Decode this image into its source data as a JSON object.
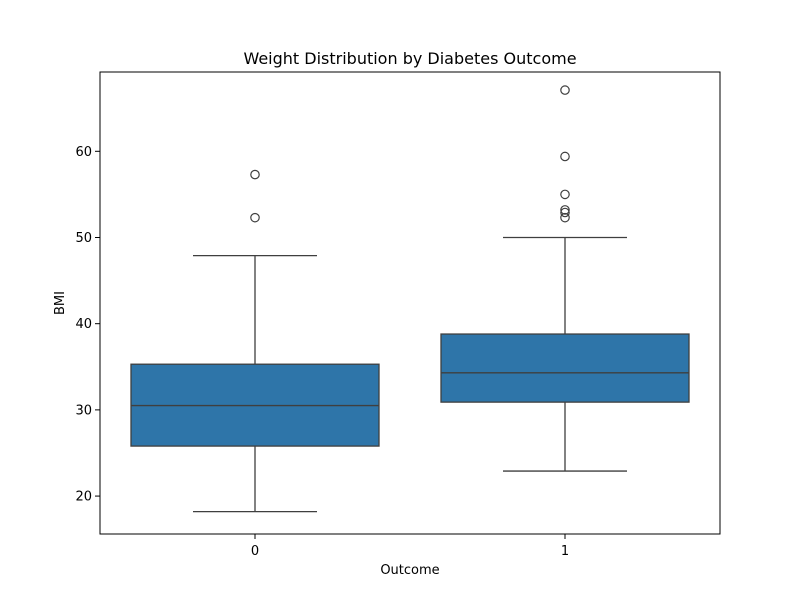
{
  "chart_data": {
    "type": "box",
    "title": "Weight Distribution by Diabetes Outcome",
    "xlabel": "Outcome",
    "ylabel": "BMI",
    "categories": [
      "0",
      "1"
    ],
    "ylim": [
      15.6,
      69.2
    ],
    "yticks": [
      20,
      30,
      40,
      50,
      60
    ],
    "grid": false,
    "box_color": "#2E75A9",
    "line_color": "#3F3F3F",
    "boxes": [
      {
        "category": "0",
        "whisker_low": 18.2,
        "q1": 25.8,
        "median": 30.5,
        "q3": 35.3,
        "whisker_high": 47.9,
        "outliers": [
          52.3,
          57.3
        ]
      },
      {
        "category": "1",
        "whisker_low": 22.9,
        "q1": 30.9,
        "median": 34.3,
        "q3": 38.8,
        "whisker_high": 50.0,
        "outliers": [
          52.3,
          52.9,
          53.2,
          55.0,
          59.4,
          67.1
        ]
      }
    ]
  }
}
